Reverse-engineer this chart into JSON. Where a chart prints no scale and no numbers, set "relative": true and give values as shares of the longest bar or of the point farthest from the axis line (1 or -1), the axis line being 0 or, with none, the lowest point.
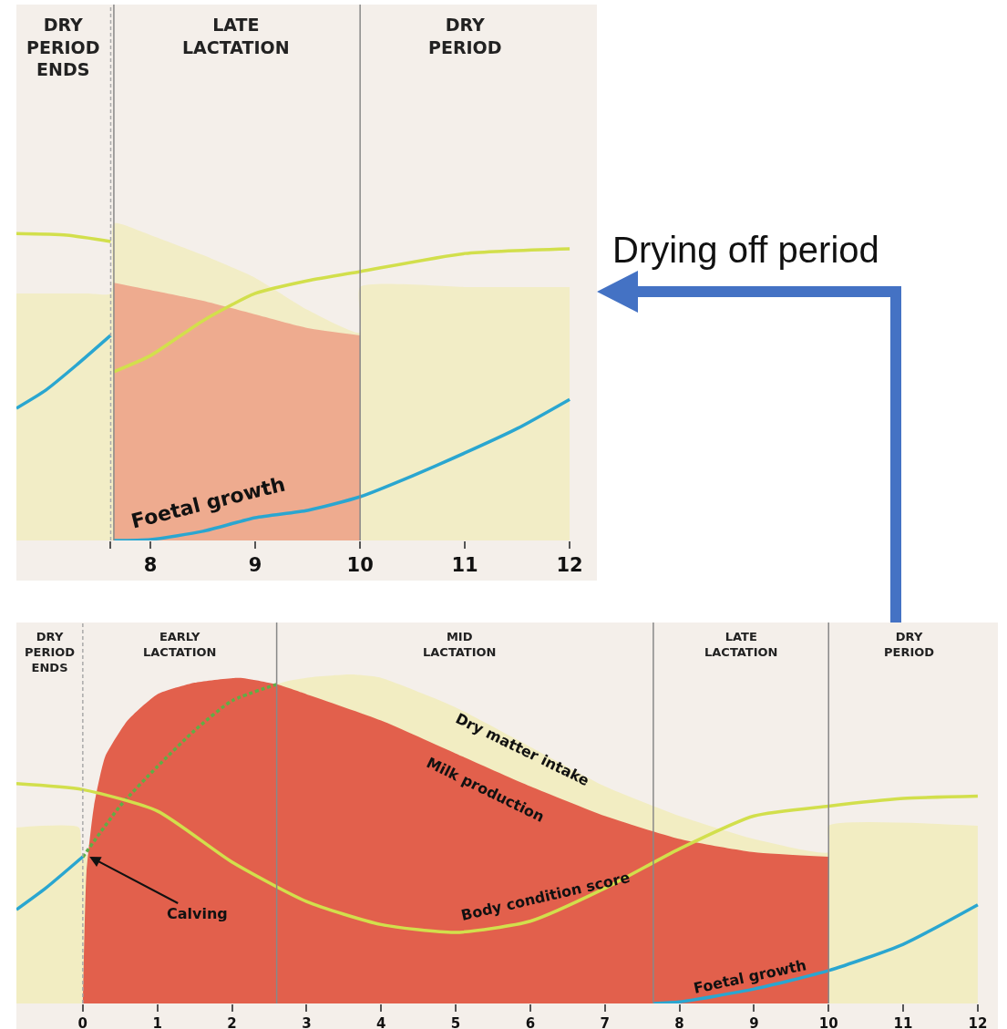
{
  "chart_data": [
    {
      "type": "area",
      "relative": true,
      "xlim": [
        6.72,
        12.26
      ],
      "xticks": [
        {
          "value": 7.62,
          "label": null
        },
        8,
        9,
        10,
        11,
        12
      ],
      "series": [
        {
          "type": "area",
          "color": "#f2edc6",
          "x": [
            6.72,
            7.0,
            7.4,
            7.62,
            7.65,
            8,
            8.5,
            9,
            9.5,
            10,
            10,
            11,
            12
          ],
          "values": [
            0.779,
            0.779,
            0.779,
            0.779,
            1.0,
            0.963,
            0.9,
            0.828,
            0.727,
            0.655,
            0.799,
            0.799,
            0.799
          ]
        },
        {
          "type": "area",
          "color": "#eeab8f",
          "x": [
            7.65,
            8,
            8.5,
            9,
            9.5,
            10
          ],
          "values": [
            0.813,
            0.79,
            0.756,
            0.713,
            0.67,
            0.647
          ]
        },
        {
          "type": "line",
          "color": "#d2df4c",
          "x": [
            6.72,
            7.2,
            7.62,
            7.63,
            7.65,
            8,
            8.5,
            9,
            9.5,
            10,
            11,
            12
          ],
          "values": [
            0.968,
            0.963,
            0.943,
            null,
            0.532,
            0.583,
            0.693,
            0.779,
            0.819,
            0.848,
            0.905,
            0.92
          ]
        },
        {
          "type": "line",
          "name": "Foetal growth",
          "color": "#2aa6d0",
          "x": [
            6.72,
            7.0,
            7.3,
            7.62,
            7.63,
            7.65,
            8,
            8.5,
            9,
            9.5,
            10,
            10.5,
            11,
            11.5,
            12
          ],
          "values": [
            0.417,
            0.474,
            0.555,
            0.647,
            null,
            0,
            0.003,
            0.029,
            0.072,
            0.095,
            0.138,
            0.204,
            0.276,
            0.353,
            0.445
          ]
        }
      ],
      "ref_lines": [
        {
          "axis": "x",
          "value": 7.62,
          "line_style": "dashed",
          "color": "#aaaaaa"
        },
        {
          "axis": "x",
          "value": 7.65,
          "line_style": "solid",
          "color": "#888888"
        },
        {
          "axis": "x",
          "value": 10,
          "line_style": "solid",
          "color": "#888888"
        }
      ],
      "annotations": [
        "DRY PERIOD ENDS",
        "LATE LACTATION",
        "DRY PERIOD",
        "Drying off period"
      ]
    },
    {
      "type": "area",
      "relative": true,
      "xlim": [
        -0.89,
        12.27
      ],
      "xticks": [
        0,
        1,
        2,
        3,
        4,
        5,
        6,
        7,
        8,
        9,
        10,
        11,
        12
      ],
      "series": [
        {
          "type": "area",
          "name": "Dry matter intake",
          "color": "#f2edc2",
          "x": [
            -0.89,
            -0.05,
            0,
            2.6,
            3,
            3.6,
            4,
            5,
            6,
            7,
            8,
            9,
            10,
            10,
            12
          ],
          "values": [
            0.535,
            0.535,
            0.445,
            0.97,
            0.99,
            1.0,
            0.99,
            0.9,
            0.78,
            0.66,
            0.57,
            0.5,
            0.46,
            0.54,
            0.54
          ]
        },
        {
          "type": "area",
          "name": "Milk production",
          "color": "#e2604c",
          "x": [
            0,
            0.05,
            0.15,
            0.3,
            0.6,
            1,
            1.5,
            2.1,
            2.6,
            3,
            4,
            5,
            6,
            7,
            8,
            9,
            10
          ],
          "values": [
            0,
            0.4,
            0.6,
            0.75,
            0.86,
            0.94,
            0.975,
            0.99,
            0.97,
            0.94,
            0.86,
            0.76,
            0.66,
            0.57,
            0.5,
            0.46,
            0.446
          ]
        },
        {
          "type": "line",
          "line_style": "dashed",
          "color": "#5fae45",
          "x": [
            0,
            0.5,
            1,
            1.5,
            2,
            2.6
          ],
          "values": [
            0.445,
            0.6,
            0.72,
            0.83,
            0.92,
            0.97
          ]
        },
        {
          "type": "line",
          "name": "Body condition score",
          "color": "#d2df4c",
          "x": [
            -0.89,
            0,
            1,
            2,
            3,
            4,
            5,
            6,
            7,
            8,
            9,
            10,
            11,
            12
          ],
          "values": [
            0.668,
            0.65,
            0.585,
            0.43,
            0.31,
            0.24,
            0.216,
            0.25,
            0.35,
            0.47,
            0.57,
            0.6,
            0.623,
            0.63
          ]
        },
        {
          "type": "line",
          "name": "Foetal growth",
          "color": "#2aa6d0",
          "x": [
            -0.89,
            -0.5,
            0,
            0.01,
            7.65,
            8,
            9,
            10,
            11,
            12
          ],
          "values": [
            0.285,
            0.35,
            0.446,
            null,
            0,
            0.005,
            0.044,
            0.1,
            0.18,
            0.3
          ]
        }
      ],
      "ref_lines": [
        {
          "axis": "x",
          "value": 0,
          "line_style": "dashed",
          "color": "#aaaaaa"
        },
        {
          "axis": "x",
          "value": 2.6,
          "line_style": "solid",
          "color": "#888888"
        },
        {
          "axis": "x",
          "value": 7.65,
          "line_style": "solid",
          "color": "#888888"
        },
        {
          "axis": "x",
          "value": 10,
          "line_style": "solid",
          "color": "#888888"
        }
      ],
      "annotations": [
        "DRY PERIOD ENDS",
        "EARLY LACTATION",
        "MID LACTATION",
        "LATE LACTATION",
        "DRY PERIOD",
        {
          "text": "Calving",
          "x": 0.09,
          "y": 0.446
        }
      ]
    }
  ]
}
